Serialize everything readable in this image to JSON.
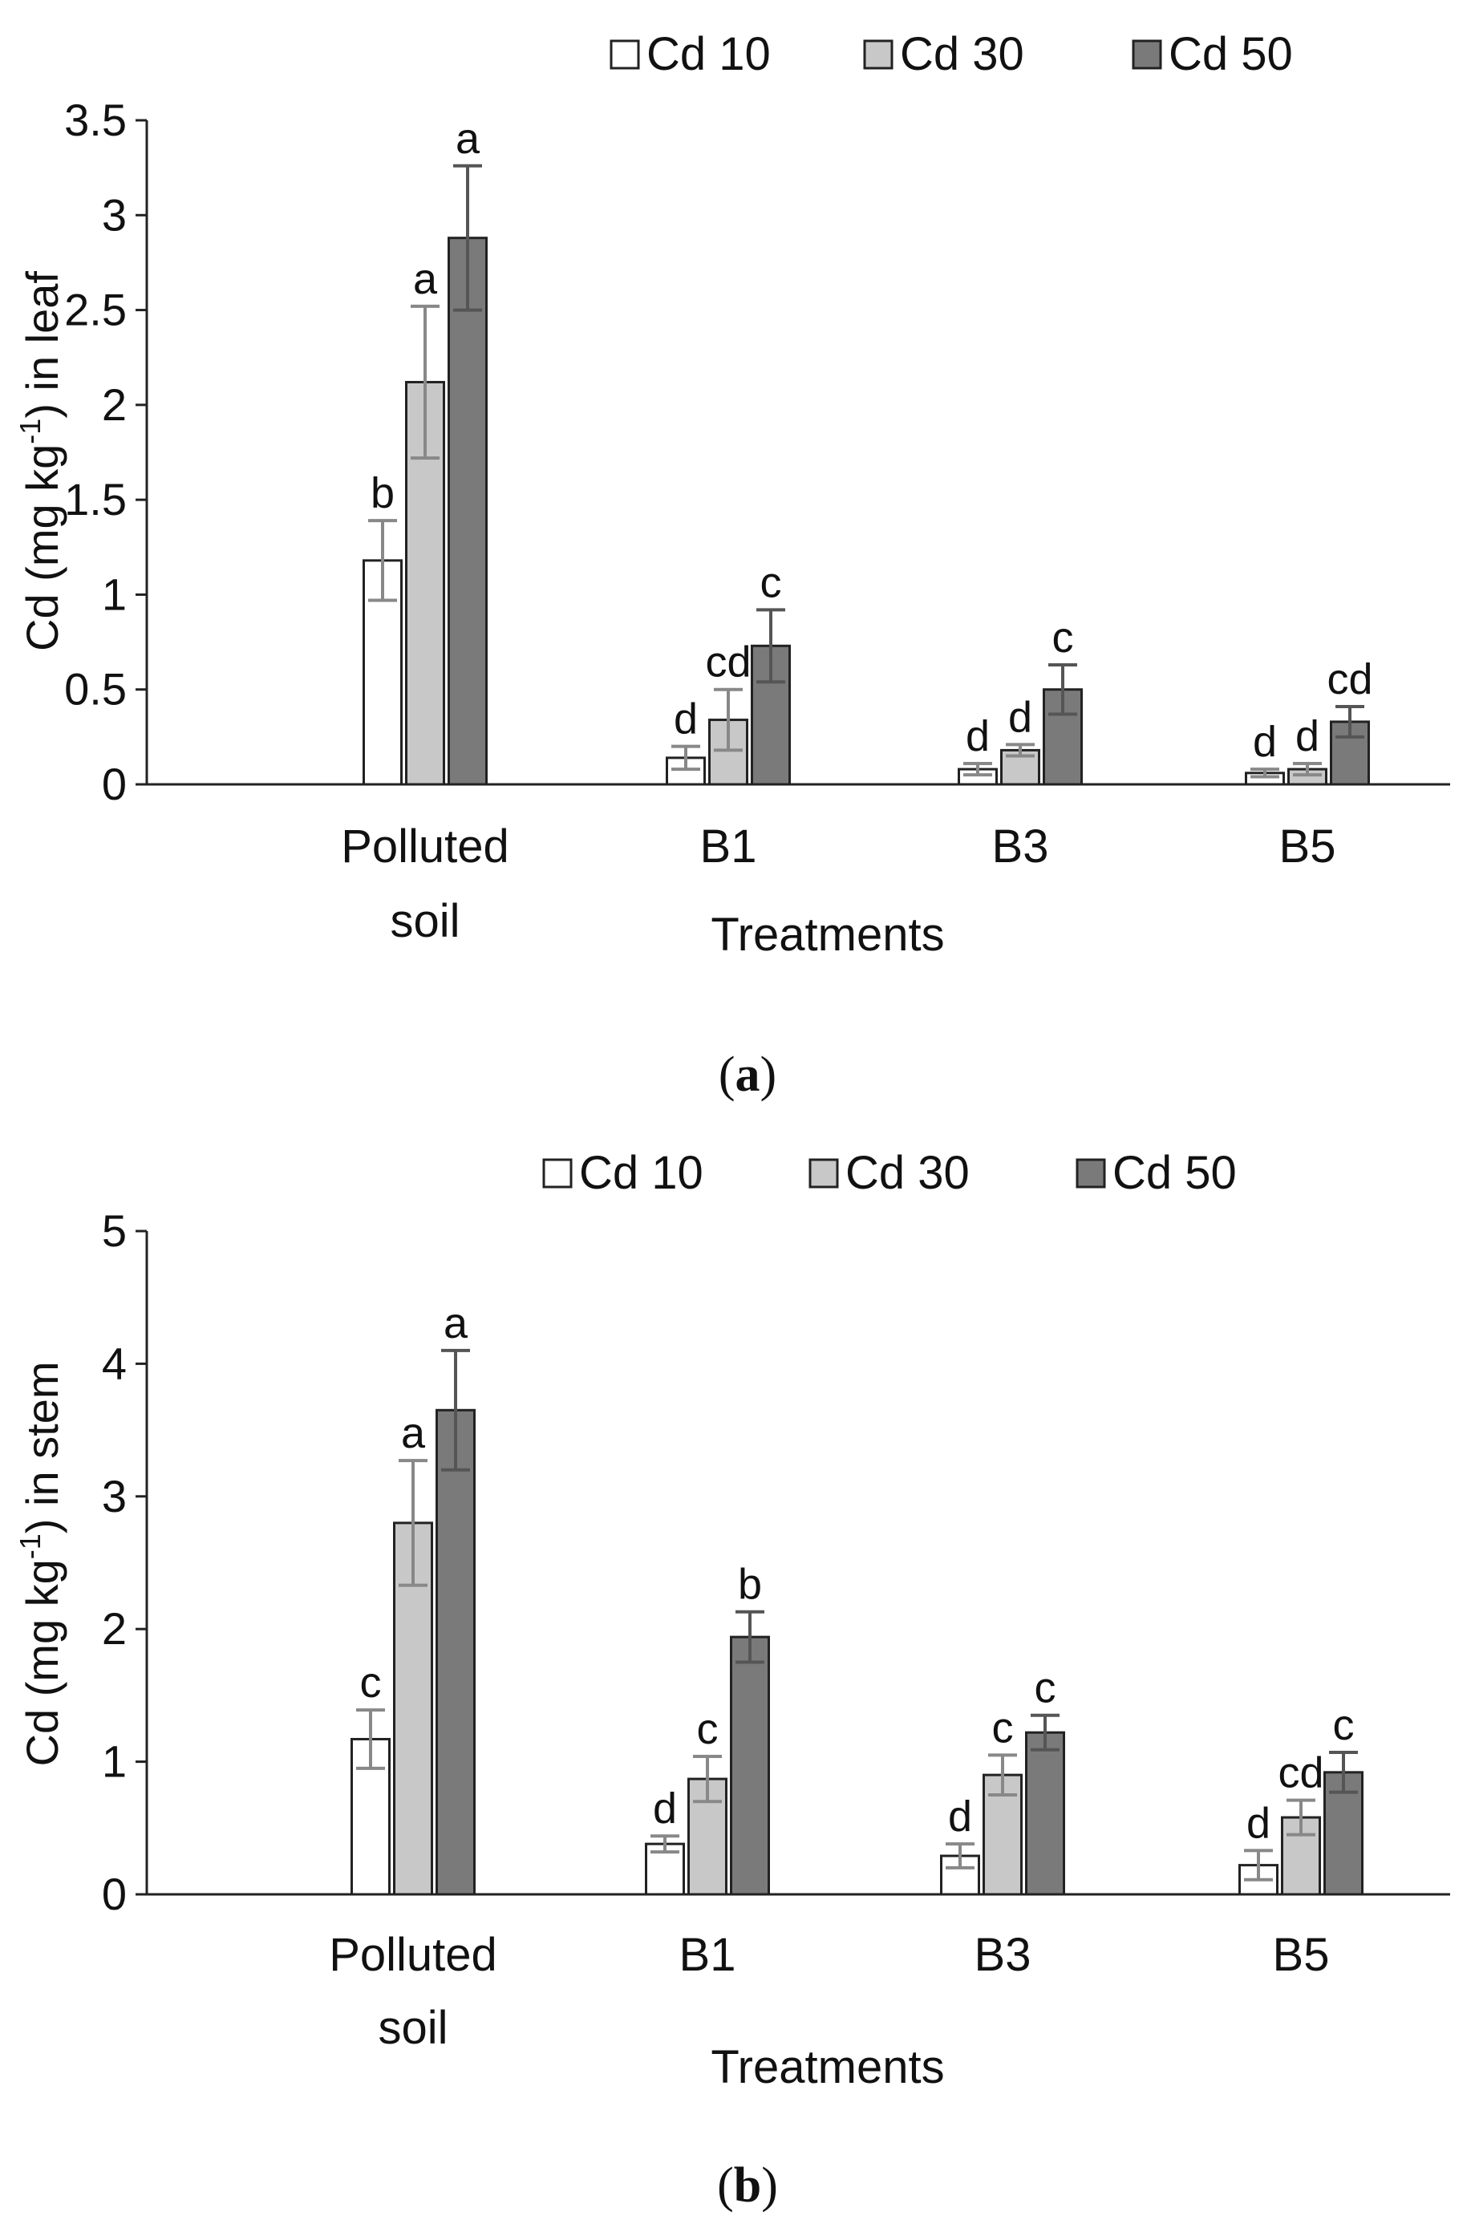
{
  "chart_data": [
    {
      "type": "bar",
      "panel_label": "a",
      "legend": [
        "Cd 10",
        "Cd 30",
        "Cd 50"
      ],
      "categories": [
        [
          "Polluted",
          "soil"
        ],
        [
          "B1"
        ],
        [
          "B3"
        ],
        [
          "B5"
        ]
      ],
      "ylabel": [
        "Cd (mg kg",
        "-1",
        ") in leaf"
      ],
      "xlabel": "Treatments",
      "ylim": [
        0,
        3.5
      ],
      "yticks": [
        0,
        0.5,
        1,
        1.5,
        2,
        2.5,
        3,
        3.5
      ],
      "ytick_labels": [
        "0",
        "0.5",
        "1",
        "1.5",
        "2",
        "2.5",
        "3",
        "3.5"
      ],
      "series": [
        {
          "name": "Cd 10",
          "color": "#ffffff",
          "values": [
            1.18,
            0.14,
            0.08,
            0.06
          ],
          "errors": [
            0.21,
            0.06,
            0.03,
            0.02
          ],
          "letters": [
            "b",
            "d",
            "d",
            "d"
          ]
        },
        {
          "name": "Cd 30",
          "color": "#c8c8c8",
          "values": [
            2.12,
            0.34,
            0.18,
            0.08
          ],
          "errors": [
            0.4,
            0.16,
            0.03,
            0.03
          ],
          "letters": [
            "a",
            "cd",
            "d",
            "d"
          ]
        },
        {
          "name": "Cd 50",
          "color": "#7a7a7a",
          "values": [
            2.88,
            0.73,
            0.5,
            0.33
          ],
          "errors": [
            0.38,
            0.19,
            0.13,
            0.08
          ],
          "letters": [
            "a",
            "c",
            "c",
            "cd"
          ]
        }
      ]
    },
    {
      "type": "bar",
      "panel_label": "b",
      "legend": [
        "Cd 10",
        "Cd 30",
        "Cd 50"
      ],
      "categories": [
        [
          "Polluted",
          "soil"
        ],
        [
          "B1"
        ],
        [
          "B3"
        ],
        [
          "B5"
        ]
      ],
      "ylabel": [
        "Cd (mg kg",
        "-1",
        ") in stem"
      ],
      "xlabel": "Treatments",
      "ylim": [
        0,
        5
      ],
      "yticks": [
        0,
        1,
        2,
        3,
        4,
        5
      ],
      "ytick_labels": [
        "0",
        "1",
        "2",
        "3",
        "4",
        "5"
      ],
      "series": [
        {
          "name": "Cd 10",
          "color": "#ffffff",
          "values": [
            1.17,
            0.38,
            0.29,
            0.22
          ],
          "errors": [
            0.22,
            0.06,
            0.09,
            0.11
          ],
          "letters": [
            "c",
            "d",
            "d",
            "d"
          ]
        },
        {
          "name": "Cd 30",
          "color": "#c8c8c8",
          "values": [
            2.8,
            0.87,
            0.9,
            0.58
          ],
          "errors": [
            0.47,
            0.17,
            0.15,
            0.13
          ],
          "letters": [
            "a",
            "c",
            "c",
            "cd"
          ]
        },
        {
          "name": "Cd 50",
          "color": "#7a7a7a",
          "values": [
            3.65,
            1.94,
            1.22,
            0.92
          ],
          "errors": [
            0.45,
            0.19,
            0.13,
            0.15
          ],
          "letters": [
            "a",
            "b",
            "c",
            "c"
          ]
        }
      ]
    }
  ]
}
